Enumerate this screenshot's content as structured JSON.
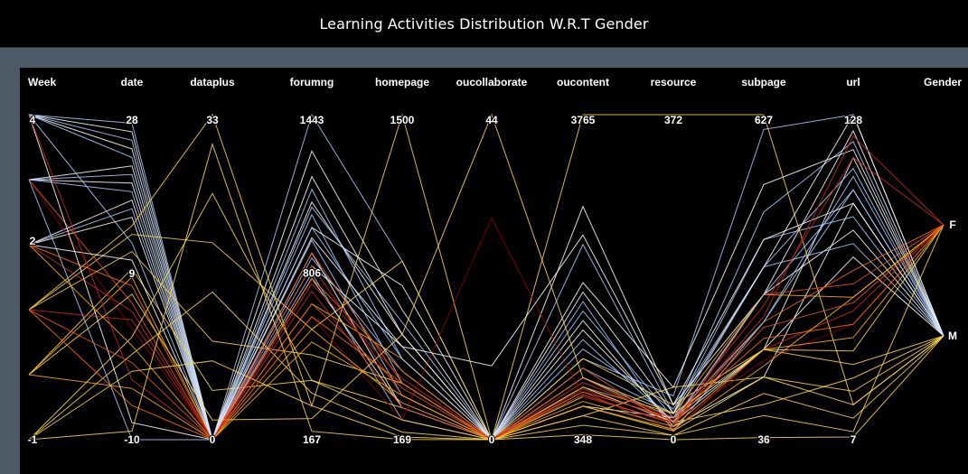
{
  "title": "Learning Activities Distribution W.R.T Gender",
  "chart_data": {
    "type": "parallel-coordinates",
    "title": "Learning Activities Distribution W.R.T Gender",
    "dimensions": [
      {
        "name": "Week",
        "labels": [
          {
            "text": "4",
            "value": 4
          },
          {
            "text": "2",
            "value": 2
          },
          {
            "text": "-1",
            "value": -1
          }
        ],
        "range": [
          -1,
          4
        ],
        "values": [
          -1,
          0,
          1,
          2,
          3,
          4
        ]
      },
      {
        "name": "date",
        "labels": [
          {
            "text": "28",
            "value": 28
          },
          {
            "text": "9",
            "value": 9
          },
          {
            "text": "-10",
            "value": -10
          }
        ],
        "range": [
          -10,
          28
        ]
      },
      {
        "name": "dataplus",
        "labels": [
          {
            "text": "33",
            "value": 33
          },
          {
            "text": "0",
            "value": 0
          }
        ],
        "range": [
          0,
          33
        ]
      },
      {
        "name": "forumng",
        "labels": [
          {
            "text": "1443",
            "value": 1443
          },
          {
            "text": "806",
            "value": 806
          },
          {
            "text": "167",
            "value": 167
          }
        ],
        "range": [
          167,
          1443
        ]
      },
      {
        "name": "homepage",
        "labels": [
          {
            "text": "1500",
            "value": 1500
          },
          {
            "text": "169",
            "value": 169
          }
        ],
        "range": [
          169,
          1500
        ]
      },
      {
        "name": "oucollaborate",
        "labels": [
          {
            "text": "44",
            "value": 44
          },
          {
            "text": "0",
            "value": 0
          }
        ],
        "range": [
          0,
          44
        ]
      },
      {
        "name": "oucontent",
        "labels": [
          {
            "text": "3765",
            "value": 3765
          },
          {
            "text": "348",
            "value": 348
          }
        ],
        "range": [
          348,
          3765
        ]
      },
      {
        "name": "resource",
        "labels": [
          {
            "text": "372",
            "value": 372
          },
          {
            "text": "0",
            "value": 0
          }
        ],
        "range": [
          0,
          372
        ]
      },
      {
        "name": "subpage",
        "labels": [
          {
            "text": "627",
            "value": 627
          },
          {
            "text": "36",
            "value": 36
          }
        ],
        "range": [
          36,
          627
        ]
      },
      {
        "name": "url",
        "labels": [
          {
            "text": "128",
            "value": 128
          },
          {
            "text": "7",
            "value": 7
          }
        ],
        "range": [
          7,
          128
        ]
      },
      {
        "name": "Gender",
        "labels": [
          {
            "text": "F",
            "value": "F"
          },
          {
            "text": "M",
            "value": "M"
          }
        ],
        "categories": [
          "M",
          "F"
        ]
      }
    ],
    "legend": "none",
    "grid": false,
    "line_colors": [
      "#ffffff",
      "#aaccff",
      "#ffd84a",
      "#ffb000",
      "#ff6a00",
      "#e8541a",
      "#c62828",
      "#8b0000"
    ],
    "records": [
      {
        "color": "#aaccff",
        "values": [
          4,
          27,
          0,
          1443,
          900,
          0,
          1200,
          50,
          600,
          128,
          "M"
        ]
      },
      {
        "color": "#ffffff",
        "values": [
          4,
          26,
          0,
          1300,
          700,
          0,
          2800,
          40,
          300,
          122,
          "M"
        ]
      },
      {
        "color": "#aaccff",
        "values": [
          4,
          25,
          0,
          1150,
          500,
          0,
          2400,
          30,
          450,
          118,
          "M"
        ]
      },
      {
        "color": "#ffffff",
        "values": [
          4,
          24,
          0,
          1100,
          600,
          0,
          1500,
          20,
          200,
          112,
          "M"
        ]
      },
      {
        "color": "#aaccff",
        "values": [
          4,
          23,
          0,
          1050,
          400,
          0,
          1000,
          25,
          350,
          108,
          "M"
        ]
      },
      {
        "color": "#ffffff",
        "values": [
          3,
          22,
          0,
          1000,
          800,
          0,
          2000,
          60,
          500,
          115,
          "M"
        ]
      },
      {
        "color": "#aaccff",
        "values": [
          3,
          21,
          0,
          950,
          350,
          0,
          1800,
          10,
          250,
          100,
          "M"
        ]
      },
      {
        "color": "#ffffff",
        "values": [
          3,
          20,
          0,
          900,
          300,
          0,
          1600,
          15,
          150,
          95,
          "M"
        ]
      },
      {
        "color": "#aaccff",
        "values": [
          3,
          19,
          0,
          880,
          450,
          0,
          1100,
          30,
          400,
          90,
          "M"
        ]
      },
      {
        "color": "#ffffff",
        "values": [
          2,
          18,
          0,
          850,
          550,
          0,
          900,
          20,
          300,
          85,
          "M"
        ]
      },
      {
        "color": "#aaccff",
        "values": [
          2,
          17,
          0,
          820,
          250,
          0,
          1300,
          35,
          350,
          80,
          "M"
        ]
      },
      {
        "color": "#ffffff",
        "values": [
          2,
          16,
          0,
          800,
          300,
          0,
          700,
          25,
          200,
          75,
          "M"
        ]
      },
      {
        "color": "#ffd84a",
        "values": [
          1,
          15,
          33,
          300,
          1500,
          0,
          3765,
          372,
          627,
          20,
          "M"
        ]
      },
      {
        "color": "#ffd84a",
        "values": [
          1,
          14,
          20,
          600,
          900,
          0,
          1200,
          40,
          200,
          40,
          "F"
        ]
      },
      {
        "color": "#ffd84a",
        "values": [
          1,
          12,
          10,
          500,
          400,
          0,
          800,
          20,
          100,
          30,
          "M"
        ]
      },
      {
        "color": "#ffd84a",
        "values": [
          0,
          10,
          5,
          400,
          300,
          0,
          600,
          60,
          150,
          25,
          "M"
        ]
      },
      {
        "color": "#ffb000",
        "values": [
          0,
          9,
          0,
          700,
          500,
          0,
          900,
          30,
          300,
          60,
          "F"
        ]
      },
      {
        "color": "#ff6a00",
        "values": [
          2,
          8,
          0,
          800,
          450,
          0,
          1000,
          20,
          250,
          70,
          "F"
        ]
      },
      {
        "color": "#e8541a",
        "values": [
          3,
          6,
          0,
          900,
          400,
          0,
          1100,
          15,
          300,
          65,
          "F"
        ]
      },
      {
        "color": "#c62828",
        "values": [
          2,
          5,
          0,
          850,
          350,
          0,
          950,
          25,
          280,
          112,
          "F"
        ]
      },
      {
        "color": "#c62828",
        "values": [
          1,
          4,
          0,
          750,
          300,
          0,
          850,
          10,
          200,
          55,
          "F"
        ]
      },
      {
        "color": "#8b0000",
        "values": [
          3,
          3,
          0,
          650,
          250,
          30,
          800,
          20,
          180,
          50,
          "F"
        ]
      },
      {
        "color": "#ffd84a",
        "values": [
          -1,
          2,
          25,
          400,
          250,
          0,
          700,
          10,
          150,
          20,
          "M"
        ]
      },
      {
        "color": "#ffd84a",
        "values": [
          -1,
          0,
          15,
          350,
          200,
          0,
          600,
          5,
          120,
          15,
          "M"
        ]
      },
      {
        "color": "#ffd84a",
        "values": [
          -1,
          -2,
          8,
          300,
          180,
          0,
          500,
          5,
          80,
          10,
          "F"
        ]
      },
      {
        "color": "#ffb000",
        "values": [
          0,
          -4,
          0,
          550,
          350,
          0,
          750,
          15,
          200,
          45,
          "F"
        ]
      },
      {
        "color": "#ff6a00",
        "values": [
          1,
          -6,
          0,
          650,
          400,
          0,
          850,
          25,
          220,
          50,
          "F"
        ]
      },
      {
        "color": "#ffffff",
        "values": [
          4,
          -8,
          0,
          1200,
          600,
          0,
          1900,
          30,
          350,
          128,
          "M"
        ]
      },
      {
        "color": "#aaccff",
        "values": [
          3,
          -10,
          0,
          1000,
          500,
          0,
          1400,
          20,
          300,
          100,
          "M"
        ]
      },
      {
        "color": "#ffffff",
        "values": [
          2,
          11,
          0,
          960,
          550,
          10,
          2500,
          40,
          400,
          95,
          "M"
        ]
      },
      {
        "color": "#aaccff",
        "values": [
          4,
          13,
          0,
          1080,
          650,
          0,
          1700,
          25,
          250,
          105,
          "M"
        ]
      },
      {
        "color": "#ffd84a",
        "values": [
          0,
          7,
          2,
          250,
          600,
          44,
          1000,
          30,
          200,
          35,
          "M"
        ]
      },
      {
        "color": "#ffb000",
        "values": [
          2,
          1,
          0,
          600,
          320,
          0,
          700,
          12,
          170,
          60,
          "F"
        ]
      },
      {
        "color": "#e8541a",
        "values": [
          1,
          -1,
          0,
          700,
          380,
          0,
          820,
          18,
          240,
          58,
          "F"
        ]
      },
      {
        "color": "#c62828",
        "values": [
          4,
          -3,
          0,
          780,
          420,
          0,
          880,
          22,
          260,
          120,
          "F"
        ]
      },
      {
        "color": "#ffd84a",
        "values": [
          -1,
          -9,
          30,
          200,
          170,
          0,
          400,
          0,
          40,
          8,
          "M"
        ]
      }
    ]
  }
}
